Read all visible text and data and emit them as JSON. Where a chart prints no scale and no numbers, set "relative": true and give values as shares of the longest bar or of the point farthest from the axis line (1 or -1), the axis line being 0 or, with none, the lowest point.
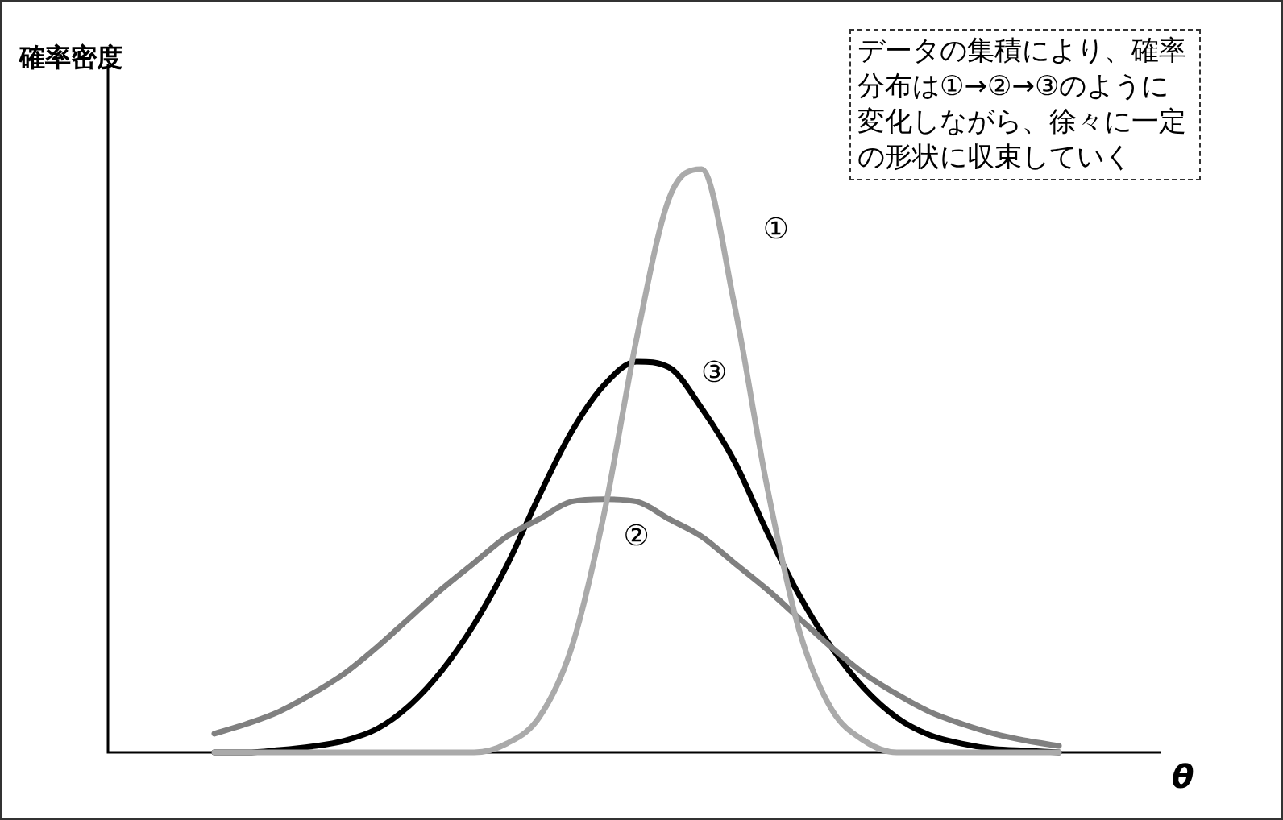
{
  "chart_data": {
    "type": "line",
    "relative": true,
    "ylabel": "確率密度",
    "xlabel": "θ",
    "legend": false,
    "marker": "none",
    "annotations": [
      "データの集積により、確率分布は①→②→③のように変化しながら、徐々に一定の形状に収束していく"
    ],
    "categories": [
      null,
      null,
      null,
      null,
      null,
      null,
      null,
      null,
      null,
      null,
      null,
      null,
      null,
      null,
      null,
      null,
      null,
      null,
      null,
      null,
      null,
      null,
      null,
      null,
      null,
      null,
      null
    ],
    "series": [
      {
        "name": "①",
        "color": "#aaaaaa",
        "values": [
          0,
          0,
          0,
          0,
          0,
          0,
          0,
          0,
          0,
          0.015,
          0.06,
          0.18,
          0.41,
          0.71,
          0.95,
          1,
          0.77,
          0.46,
          0.21,
          0.074,
          0.02,
          0,
          0,
          0,
          0,
          0,
          0
        ]
      },
      {
        "name": "②",
        "color": "#808080",
        "values": [
          0.032,
          0.049,
          0.07,
          0.1,
          0.135,
          0.18,
          0.23,
          0.28,
          0.325,
          0.37,
          0.4,
          0.43,
          0.434,
          0.43,
          0.4,
          0.37,
          0.325,
          0.28,
          0.23,
          0.18,
          0.135,
          0.1,
          0.07,
          0.049,
          0.032,
          0.02,
          0.011
        ]
      },
      {
        "name": "③",
        "color": "#000000",
        "values": [
          0,
          0,
          0.004,
          0.01,
          0.02,
          0.04,
          0.08,
          0.14,
          0.22,
          0.32,
          0.44,
          0.55,
          0.63,
          0.67,
          0.66,
          0.59,
          0.5,
          0.38,
          0.27,
          0.18,
          0.11,
          0.06,
          0.03,
          0.015,
          0.006,
          0.003,
          0
        ]
      }
    ]
  }
}
